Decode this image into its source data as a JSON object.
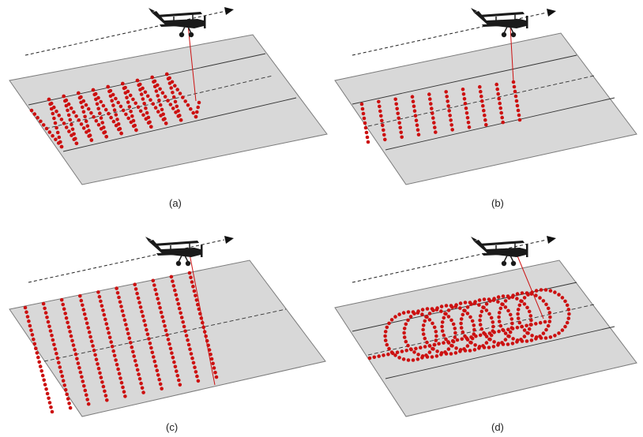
{
  "figure": {
    "panels": [
      {
        "id": "a",
        "label": "(a)",
        "pattern": "zigzag"
      },
      {
        "id": "b",
        "label": "(b)",
        "pattern": "parallel-lines-within-swath"
      },
      {
        "id": "c",
        "label": "(c)",
        "pattern": "parallel-lines-full-width"
      },
      {
        "id": "d",
        "label": "(d)",
        "pattern": "looping-circles"
      }
    ]
  },
  "icons": {
    "aircraft": "biplane-icon",
    "direction": "flight-direction-arrow-icon"
  },
  "colors": {
    "ground": "#d8d8d8",
    "ground_edge": "#7a7a7a",
    "point": "#cc1111",
    "beam": "#cc1111",
    "aircraft": "#1a1a1a",
    "path": "#222222"
  }
}
